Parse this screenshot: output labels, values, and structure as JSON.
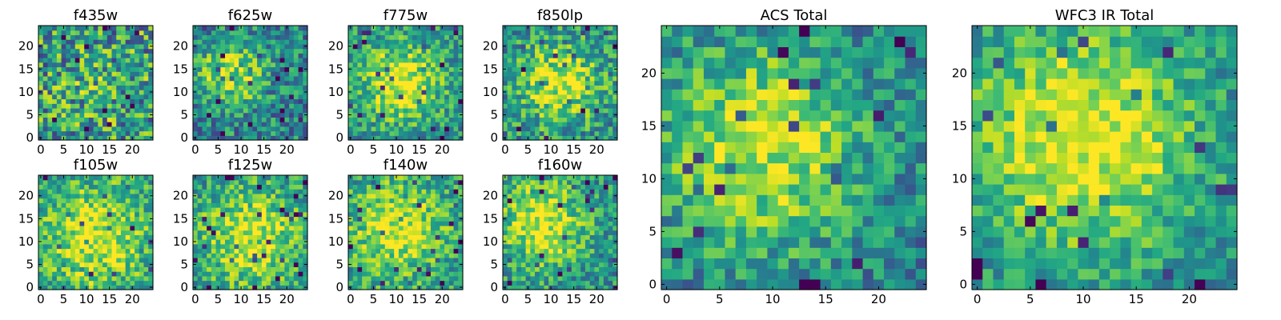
{
  "figure": {
    "description_colormap": "viridis",
    "colors": {
      "low": "#440154",
      "high": "#fde725"
    }
  },
  "chart_data": [
    {
      "type": "heatmap",
      "title": "f435w",
      "size": 25,
      "xticks": [
        0,
        5,
        10,
        15,
        20
      ],
      "yticks": [
        0,
        5,
        10,
        15,
        20
      ],
      "seed": 11,
      "blob": [
        12,
        10,
        5,
        0.1
      ],
      "noise": 0.75,
      "base": 0.55
    },
    {
      "type": "heatmap",
      "title": "f625w",
      "size": 25,
      "xticks": [
        0,
        5,
        10,
        15,
        20
      ],
      "yticks": [
        0,
        5,
        10,
        15,
        20
      ],
      "seed": 23,
      "blob": [
        8,
        14,
        5,
        0.45
      ],
      "noise": 0.55,
      "base": 0.45
    },
    {
      "type": "heatmap",
      "title": "f775w",
      "size": 25,
      "xticks": [
        0,
        5,
        10,
        15,
        20
      ],
      "yticks": [
        0,
        5,
        10,
        15,
        20
      ],
      "seed": 37,
      "blob": [
        11,
        12,
        6,
        0.5
      ],
      "noise": 0.5,
      "base": 0.5
    },
    {
      "type": "heatmap",
      "title": "f850lp",
      "size": 25,
      "xticks": [
        0,
        5,
        10,
        15,
        20
      ],
      "yticks": [
        0,
        5,
        10,
        15,
        20
      ],
      "seed": 41,
      "blob": [
        12,
        12,
        6,
        0.45
      ],
      "noise": 0.55,
      "base": 0.5
    },
    {
      "type": "heatmap",
      "title": "f105w",
      "size": 25,
      "xticks": [
        0,
        5,
        10,
        15,
        20
      ],
      "yticks": [
        0,
        5,
        10,
        15,
        20
      ],
      "seed": 53,
      "blob": [
        12,
        11,
        8,
        0.4
      ],
      "noise": 0.5,
      "base": 0.55
    },
    {
      "type": "heatmap",
      "title": "f125w",
      "size": 25,
      "xticks": [
        0,
        5,
        10,
        15,
        20
      ],
      "yticks": [
        0,
        5,
        10,
        15,
        20
      ],
      "seed": 67,
      "blob": [
        12,
        11,
        7,
        0.4
      ],
      "noise": 0.5,
      "base": 0.55
    },
    {
      "type": "heatmap",
      "title": "f140w",
      "size": 25,
      "xticks": [
        0,
        5,
        10,
        15,
        20
      ],
      "yticks": [
        0,
        5,
        10,
        15,
        20
      ],
      "seed": 71,
      "blob": [
        10,
        13,
        7,
        0.4
      ],
      "noise": 0.5,
      "base": 0.55
    },
    {
      "type": "heatmap",
      "title": "f160w",
      "size": 25,
      "xticks": [
        0,
        5,
        10,
        15,
        20
      ],
      "yticks": [
        0,
        5,
        10,
        15,
        20
      ],
      "seed": 89,
      "blob": [
        8,
        14,
        7,
        0.45
      ],
      "noise": 0.5,
      "base": 0.5
    },
    {
      "type": "heatmap",
      "title": "ACS Total",
      "size": 25,
      "xticks": [
        0,
        5,
        10,
        15,
        20
      ],
      "yticks": [
        0,
        5,
        10,
        15,
        20
      ],
      "seed": 97,
      "blob": [
        9,
        13,
        7,
        0.5
      ],
      "noise": 0.45,
      "base": 0.42
    },
    {
      "type": "heatmap",
      "title": "WFC3 IR Total",
      "size": 25,
      "xticks": [
        0,
        5,
        10,
        15,
        20
      ],
      "yticks": [
        0,
        5,
        10,
        15,
        20
      ],
      "seed": 101,
      "blob": [
        10,
        14,
        8,
        0.55
      ],
      "noise": 0.4,
      "base": 0.45
    }
  ]
}
